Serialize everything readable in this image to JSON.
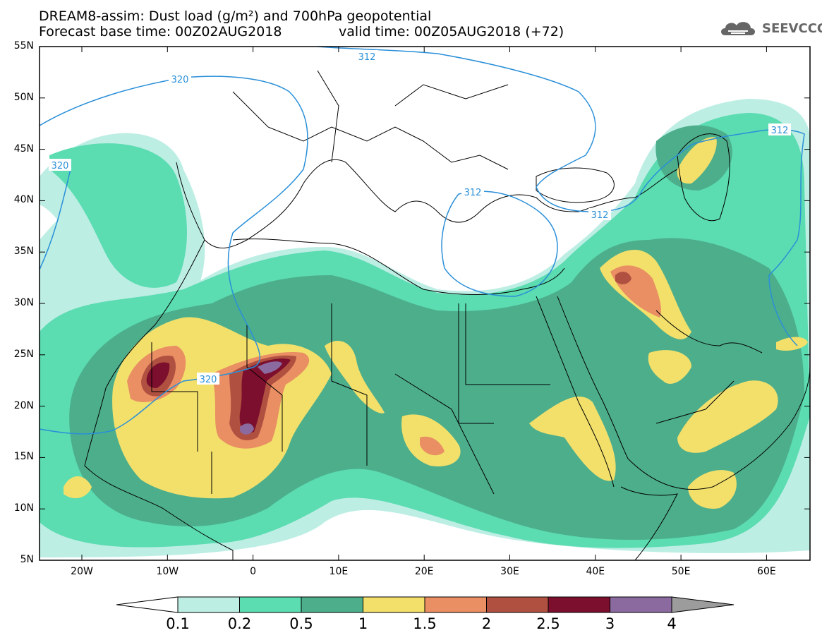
{
  "title": {
    "line1": "DREAM8-assim: Dust load (g/m²) and 700hPa geopotential",
    "base_time": "Forecast base time: 00Z02AUG2018",
    "valid_time": "valid time: 00Z05AUG2018 (+72)"
  },
  "logo": {
    "text": "SEEVCCC",
    "icon": "cloud-icon"
  },
  "map": {
    "lat_labels": [
      "55N",
      "50N",
      "45N",
      "40N",
      "35N",
      "30N",
      "25N",
      "20N",
      "15N",
      "10N",
      "5N"
    ],
    "lon_labels": [
      "20W",
      "10W",
      "0",
      "10E",
      "20E",
      "30E",
      "40E",
      "50E",
      "60E"
    ],
    "contour_labels": [
      "312",
      "320",
      "320",
      "320",
      "312",
      "312",
      "312"
    ],
    "colors": {
      "0.1": "#bdeee4",
      "0.2": "#5bdcb1",
      "0.5": "#4dae8c",
      "1": "#f2e06b",
      "1.5": "#ea8e63",
      "2": "#b05040",
      "2.5": "#7c0f2d",
      "3": "#8b6aa0",
      "4": "#9c9c9c",
      "contour": "#2a8fd8"
    }
  },
  "colorbar": {
    "labels": [
      "0.1",
      "0.2",
      "0.5",
      "1",
      "1.5",
      "2",
      "2.5",
      "3",
      "4"
    ],
    "colors": [
      "#bdeee4",
      "#5bdcb1",
      "#4dae8c",
      "#f2e06b",
      "#ea8e63",
      "#b05040",
      "#7c0f2d",
      "#8b6aa0",
      "#9c9c9c"
    ]
  }
}
